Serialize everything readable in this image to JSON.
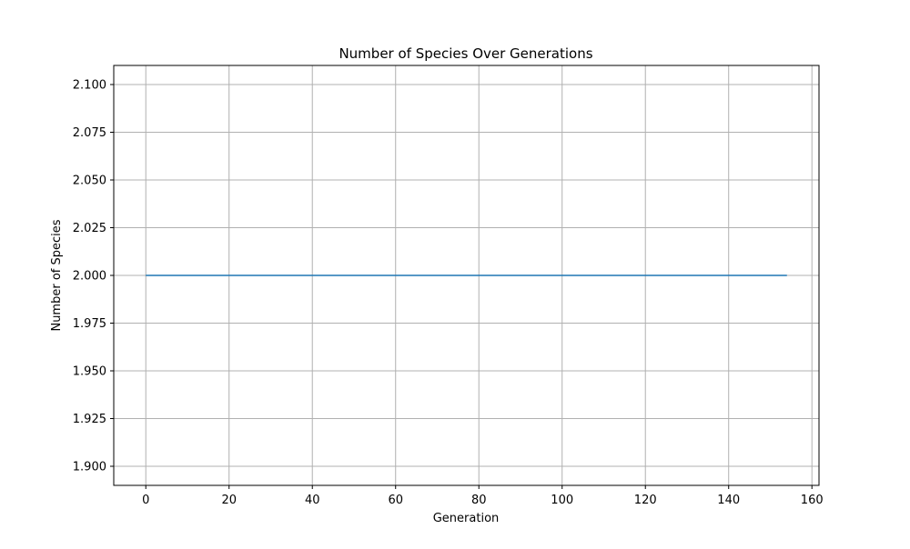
{
  "chart_data": {
    "type": "line",
    "title": "Number of Species Over Generations",
    "xlabel": "Generation",
    "ylabel": "Number of Species",
    "xlim": [
      -7.7,
      161.7
    ],
    "ylim": [
      1.89,
      2.11
    ],
    "xticks": [
      0,
      20,
      40,
      60,
      80,
      100,
      120,
      140,
      160
    ],
    "yticks": [
      1.9,
      1.925,
      1.95,
      1.975,
      2.0,
      2.025,
      2.05,
      2.075,
      2.1
    ],
    "xtick_labels": [
      "0",
      "20",
      "40",
      "60",
      "80",
      "100",
      "120",
      "140",
      "160"
    ],
    "ytick_labels": [
      "1.900",
      "1.925",
      "1.950",
      "1.975",
      "2.000",
      "2.025",
      "2.050",
      "2.075",
      "2.100"
    ],
    "grid": true,
    "series": [
      {
        "color": "#1f77b4",
        "x": [
          0,
          154
        ],
        "values": [
          2.0,
          2.0
        ]
      }
    ]
  },
  "colors": {
    "grid": "#b0b0b0",
    "axes": "#000000",
    "background": "#ffffff"
  }
}
